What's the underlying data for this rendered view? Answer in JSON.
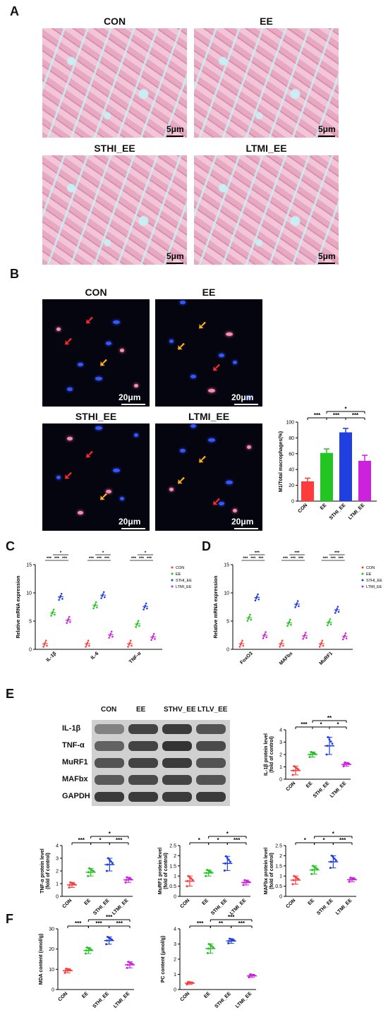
{
  "panels": {
    "A": "A",
    "B": "B",
    "C": "C",
    "D": "D",
    "E": "E",
    "F": "F"
  },
  "panelA": {
    "titles": [
      "CON",
      "EE",
      "STHI_EE",
      "LTMI_EE"
    ],
    "scale": "5μm"
  },
  "panelB": {
    "titles": [
      "CON",
      "EE",
      "STHI_EE",
      "LTMI_EE"
    ],
    "scale": "20μm"
  },
  "panelE_blot": {
    "lanes": [
      "CON",
      "EE",
      "STHV_EE",
      "LTLV_EE"
    ],
    "rows": [
      "IL-1β",
      "TNF-α",
      "MuRF1",
      "MAFbx",
      "GAPDH"
    ]
  },
  "colors": {
    "CON": "#ff3b3b",
    "EE": "#22c522",
    "STHI_EE": "#1f3fe0",
    "LTMI_EE": "#cc22dd"
  },
  "chart_data": [
    {
      "id": "B_bar",
      "type": "bar",
      "categories": [
        "CON",
        "EE",
        "STHI_EE",
        "LTMI_EE"
      ],
      "values": [
        25,
        61,
        87,
        51
      ],
      "errors": [
        4,
        5,
        5,
        7
      ],
      "ylabel": "M1/Total macrophages(%)",
      "ylim": [
        0,
        100
      ],
      "yticks": [
        0,
        20,
        40,
        60,
        80,
        100
      ],
      "sig": [
        {
          "a": 0,
          "b": 1,
          "t": "***"
        },
        {
          "a": 1,
          "b": 2,
          "t": "***"
        },
        {
          "a": 2,
          "b": 3,
          "t": "***"
        },
        {
          "a": 1,
          "b": 3,
          "t": "*"
        }
      ]
    },
    {
      "id": "C",
      "type": "scatter",
      "ylabel": "Relative mRNA expression",
      "categories": [
        "IL-1β",
        "IL-6",
        "TNF-α"
      ],
      "ylim": [
        0,
        15
      ],
      "yticks": [
        0,
        5,
        10,
        15
      ],
      "series": [
        {
          "name": "CON",
          "values": [
            1.0,
            1.0,
            1.0
          ]
        },
        {
          "name": "EE",
          "values": [
            6.5,
            7.8,
            4.5
          ]
        },
        {
          "name": "STHI_EE",
          "values": [
            9.3,
            9.6,
            7.6
          ]
        },
        {
          "name": "LTMI_EE",
          "values": [
            5.2,
            2.6,
            2.2
          ]
        }
      ],
      "sig": [
        "***",
        "***",
        "***",
        "***",
        "*"
      ]
    },
    {
      "id": "D",
      "type": "scatter",
      "ylabel": "Relative mRNA expression",
      "categories": [
        "FoxO3",
        "MAFbx",
        "MuRF1"
      ],
      "ylim": [
        0,
        15
      ],
      "yticks": [
        0,
        5,
        10,
        15
      ],
      "series": [
        {
          "name": "CON",
          "values": [
            1.0,
            1.0,
            1.0
          ]
        },
        {
          "name": "EE",
          "values": [
            5.6,
            4.7,
            4.8
          ]
        },
        {
          "name": "STHI_EE",
          "values": [
            9.2,
            8.0,
            7.0
          ]
        },
        {
          "name": "LTMI_EE",
          "values": [
            2.5,
            2.4,
            2.3
          ]
        }
      ],
      "sig": [
        "***",
        "***",
        "***",
        "***",
        "***"
      ]
    },
    {
      "id": "E_IL1",
      "type": "scatter",
      "ylabel": "IL-1β protein level",
      "ylabel2": "(fold of control)",
      "categories": [
        "CON",
        "EE",
        "STHI_EE",
        "LTMI_EE"
      ],
      "values": [
        0.7,
        2.0,
        2.7,
        1.2
      ],
      "sd": [
        0.35,
        0.2,
        0.7,
        0.15
      ],
      "ylim": [
        0,
        4
      ],
      "yticks": [
        0,
        1,
        2,
        3,
        4
      ],
      "sig": [
        {
          "a": 0,
          "b": 1,
          "t": "***"
        },
        {
          "a": 1,
          "b": 2,
          "t": "*"
        },
        {
          "a": 2,
          "b": 3,
          "t": "*"
        },
        {
          "a": 1,
          "b": 3,
          "t": "**"
        }
      ]
    },
    {
      "id": "E_TNF",
      "type": "scatter",
      "ylabel": "TNF-α protein level",
      "ylabel2": "(fold of control)",
      "categories": [
        "CON",
        "EE",
        "STHI_EE",
        "LTMI_EE"
      ],
      "values": [
        0.9,
        1.9,
        2.5,
        1.3
      ],
      "sd": [
        0.2,
        0.3,
        0.5,
        0.2
      ],
      "ylim": [
        0,
        4
      ],
      "yticks": [
        0,
        1,
        2,
        3,
        4
      ],
      "sig": [
        {
          "a": 0,
          "b": 1,
          "t": "***"
        },
        {
          "a": 1,
          "b": 2,
          "t": "*"
        },
        {
          "a": 2,
          "b": 3,
          "t": "***"
        },
        {
          "a": 1,
          "b": 3,
          "t": "*"
        }
      ]
    },
    {
      "id": "E_MuRF",
      "type": "scatter",
      "ylabel": "MuRF1 protein level",
      "ylabel2": "(fold of control)",
      "categories": [
        "CON",
        "EE",
        "STHI_EE",
        "LTMI_EE"
      ],
      "values": [
        0.75,
        1.15,
        1.62,
        0.68
      ],
      "sd": [
        0.25,
        0.15,
        0.35,
        0.12
      ],
      "ylim": [
        0,
        2.5
      ],
      "yticks": [
        0,
        0.5,
        1.0,
        1.5,
        2.0,
        2.5
      ],
      "sig": [
        {
          "a": 0,
          "b": 1,
          "t": "*"
        },
        {
          "a": 1,
          "b": 2,
          "t": "*"
        },
        {
          "a": 2,
          "b": 3,
          "t": "***"
        },
        {
          "a": 1,
          "b": 3,
          "t": "*"
        }
      ]
    },
    {
      "id": "E_MAF",
      "type": "scatter",
      "ylabel": "MAFbx protein level",
      "ylabel2": "(fold of control)",
      "categories": [
        "CON",
        "EE",
        "STHI_EE",
        "LTMI_EE"
      ],
      "values": [
        0.8,
        1.3,
        1.7,
        0.82
      ],
      "sd": [
        0.2,
        0.2,
        0.3,
        0.1
      ],
      "ylim": [
        0,
        2.5
      ],
      "yticks": [
        0,
        0.5,
        1.0,
        1.5,
        2.0,
        2.5
      ],
      "sig": [
        {
          "a": 0,
          "b": 1,
          "t": "*"
        },
        {
          "a": 1,
          "b": 2,
          "t": "*"
        },
        {
          "a": 2,
          "b": 3,
          "t": "***"
        },
        {
          "a": 1,
          "b": 3,
          "t": "*"
        }
      ]
    },
    {
      "id": "F_MDA",
      "type": "scatter",
      "ylabel": "MDA content (nmol/g)",
      "categories": [
        "CON",
        "EE",
        "STHI_EE",
        "LTMI_EE"
      ],
      "values": [
        9.3,
        19.3,
        24.2,
        12.2
      ],
      "sd": [
        1.0,
        1.5,
        1.8,
        1.5
      ],
      "ylim": [
        0,
        30
      ],
      "yticks": [
        0,
        10,
        20,
        30
      ],
      "sig": [
        {
          "a": 0,
          "b": 1,
          "t": "***"
        },
        {
          "a": 1,
          "b": 2,
          "t": "***"
        },
        {
          "a": 2,
          "b": 3,
          "t": "***"
        },
        {
          "a": 1,
          "b": 3,
          "t": "***"
        }
      ]
    },
    {
      "id": "F_PC",
      "type": "scatter",
      "ylabel": "PC content (μmol/g)",
      "categories": [
        "CON",
        "EE",
        "STHI_EE",
        "LTMI_EE"
      ],
      "values": [
        0.42,
        2.7,
        3.2,
        0.9
      ],
      "sd": [
        0.08,
        0.3,
        0.15,
        0.1
      ],
      "ylim": [
        0,
        4
      ],
      "yticks": [
        0,
        1,
        2,
        3,
        4
      ],
      "sig": [
        {
          "a": 0,
          "b": 1,
          "t": "***"
        },
        {
          "a": 1,
          "b": 2,
          "t": "**"
        },
        {
          "a": 2,
          "b": 3,
          "t": "***"
        },
        {
          "a": 1,
          "b": 3,
          "t": "***"
        }
      ]
    }
  ]
}
